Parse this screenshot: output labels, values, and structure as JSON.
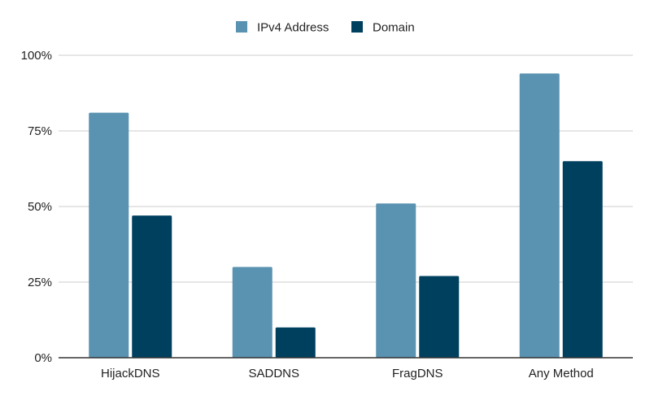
{
  "chart_data": {
    "type": "bar",
    "categories": [
      "HijackDNS",
      "SADDNS",
      "FragDNS",
      "Any Method"
    ],
    "series": [
      {
        "name": "IPv4 Address",
        "color": "#5a92b1",
        "values": [
          81,
          30,
          51,
          94
        ]
      },
      {
        "name": "Domain",
        "color": "#00405f",
        "values": [
          47,
          10,
          27,
          65
        ]
      }
    ],
    "ylim": [
      0,
      100
    ],
    "yticks": [
      {
        "value": 0,
        "label": "0%"
      },
      {
        "value": 25,
        "label": "25%"
      },
      {
        "value": 50,
        "label": "50%"
      },
      {
        "value": 75,
        "label": "75%"
      },
      {
        "value": 100,
        "label": "100%"
      }
    ],
    "legend_position": "top",
    "grid": true
  }
}
